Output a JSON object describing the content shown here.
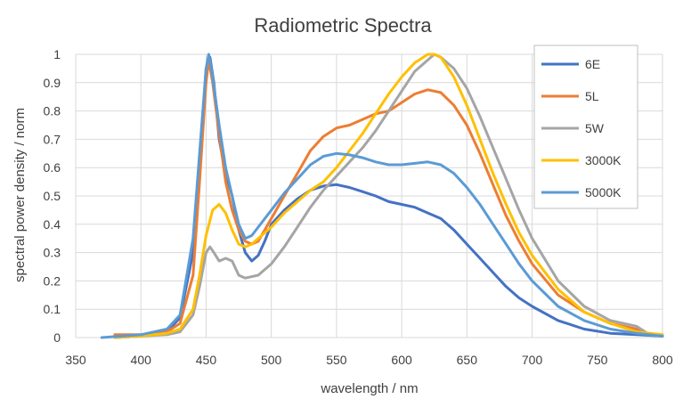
{
  "chart_data": {
    "type": "line",
    "title": "Radiometric Spectra",
    "xlabel": "wavelength / nm",
    "ylabel": "spectral power density / norm",
    "xlim": [
      350,
      800
    ],
    "ylim": [
      0,
      1
    ],
    "x_ticks": [
      350,
      400,
      450,
      500,
      550,
      600,
      650,
      700,
      750,
      800
    ],
    "y_ticks": [
      0,
      0.1,
      0.2,
      0.3,
      0.4,
      0.5,
      0.6,
      0.7,
      0.8,
      0.9,
      1
    ],
    "grid": true,
    "legend_position": "top-right",
    "series": [
      {
        "name": "6E",
        "color": "#4472c4",
        "points": [
          [
            380,
            0
          ],
          [
            400,
            0.005
          ],
          [
            420,
            0.02
          ],
          [
            430,
            0.07
          ],
          [
            440,
            0.3
          ],
          [
            445,
            0.6
          ],
          [
            450,
            0.95
          ],
          [
            453,
            0.99
          ],
          [
            456,
            0.9
          ],
          [
            460,
            0.7
          ],
          [
            465,
            0.58
          ],
          [
            470,
            0.5
          ],
          [
            475,
            0.38
          ],
          [
            480,
            0.3
          ],
          [
            485,
            0.27
          ],
          [
            490,
            0.29
          ],
          [
            495,
            0.34
          ],
          [
            500,
            0.4
          ],
          [
            510,
            0.45
          ],
          [
            520,
            0.49
          ],
          [
            530,
            0.52
          ],
          [
            540,
            0.535
          ],
          [
            550,
            0.54
          ],
          [
            560,
            0.53
          ],
          [
            570,
            0.515
          ],
          [
            580,
            0.5
          ],
          [
            590,
            0.48
          ],
          [
            600,
            0.47
          ],
          [
            610,
            0.46
          ],
          [
            620,
            0.44
          ],
          [
            630,
            0.42
          ],
          [
            640,
            0.38
          ],
          [
            650,
            0.33
          ],
          [
            660,
            0.28
          ],
          [
            670,
            0.23
          ],
          [
            680,
            0.18
          ],
          [
            690,
            0.14
          ],
          [
            700,
            0.11
          ],
          [
            720,
            0.06
          ],
          [
            740,
            0.03
          ],
          [
            760,
            0.015
          ],
          [
            780,
            0.01
          ],
          [
            800,
            0.005
          ]
        ]
      },
      {
        "name": "5L",
        "color": "#ed7d31",
        "points": [
          [
            380,
            0.01
          ],
          [
            400,
            0.01
          ],
          [
            420,
            0.02
          ],
          [
            430,
            0.05
          ],
          [
            440,
            0.22
          ],
          [
            445,
            0.55
          ],
          [
            450,
            0.9
          ],
          [
            452,
            0.98
          ],
          [
            455,
            0.9
          ],
          [
            460,
            0.72
          ],
          [
            465,
            0.55
          ],
          [
            470,
            0.45
          ],
          [
            475,
            0.38
          ],
          [
            480,
            0.34
          ],
          [
            485,
            0.33
          ],
          [
            490,
            0.34
          ],
          [
            495,
            0.38
          ],
          [
            500,
            0.42
          ],
          [
            510,
            0.5
          ],
          [
            520,
            0.58
          ],
          [
            530,
            0.66
          ],
          [
            540,
            0.71
          ],
          [
            550,
            0.74
          ],
          [
            560,
            0.75
          ],
          [
            570,
            0.77
          ],
          [
            580,
            0.79
          ],
          [
            590,
            0.8
          ],
          [
            600,
            0.83
          ],
          [
            610,
            0.86
          ],
          [
            620,
            0.875
          ],
          [
            630,
            0.865
          ],
          [
            640,
            0.82
          ],
          [
            650,
            0.75
          ],
          [
            660,
            0.65
          ],
          [
            670,
            0.54
          ],
          [
            680,
            0.43
          ],
          [
            690,
            0.34
          ],
          [
            700,
            0.26
          ],
          [
            720,
            0.15
          ],
          [
            740,
            0.09
          ],
          [
            760,
            0.05
          ],
          [
            780,
            0.03
          ],
          [
            790,
            0.01
          ],
          [
            800,
            0.005
          ]
        ]
      },
      {
        "name": "5W",
        "color": "#a5a5a5",
        "points": [
          [
            380,
            0
          ],
          [
            400,
            0.005
          ],
          [
            420,
            0.01
          ],
          [
            430,
            0.02
          ],
          [
            440,
            0.08
          ],
          [
            445,
            0.18
          ],
          [
            450,
            0.3
          ],
          [
            453,
            0.32
          ],
          [
            456,
            0.3
          ],
          [
            460,
            0.27
          ],
          [
            465,
            0.28
          ],
          [
            470,
            0.27
          ],
          [
            475,
            0.22
          ],
          [
            480,
            0.21
          ],
          [
            490,
            0.22
          ],
          [
            500,
            0.26
          ],
          [
            510,
            0.32
          ],
          [
            520,
            0.39
          ],
          [
            530,
            0.46
          ],
          [
            540,
            0.52
          ],
          [
            550,
            0.57
          ],
          [
            560,
            0.62
          ],
          [
            570,
            0.67
          ],
          [
            580,
            0.73
          ],
          [
            590,
            0.8
          ],
          [
            600,
            0.87
          ],
          [
            610,
            0.94
          ],
          [
            620,
            0.98
          ],
          [
            625,
            1
          ],
          [
            630,
            0.99
          ],
          [
            640,
            0.95
          ],
          [
            650,
            0.88
          ],
          [
            660,
            0.78
          ],
          [
            670,
            0.67
          ],
          [
            680,
            0.56
          ],
          [
            690,
            0.45
          ],
          [
            700,
            0.35
          ],
          [
            720,
            0.2
          ],
          [
            740,
            0.11
          ],
          [
            760,
            0.06
          ],
          [
            780,
            0.04
          ],
          [
            790,
            0.01
          ],
          [
            800,
            0.005
          ]
        ]
      },
      {
        "name": "3000K",
        "color": "#ffc000",
        "points": [
          [
            380,
            0
          ],
          [
            400,
            0.005
          ],
          [
            420,
            0.015
          ],
          [
            430,
            0.03
          ],
          [
            440,
            0.1
          ],
          [
            445,
            0.22
          ],
          [
            450,
            0.36
          ],
          [
            455,
            0.45
          ],
          [
            460,
            0.47
          ],
          [
            465,
            0.44
          ],
          [
            470,
            0.38
          ],
          [
            475,
            0.33
          ],
          [
            480,
            0.32
          ],
          [
            485,
            0.33
          ],
          [
            490,
            0.35
          ],
          [
            500,
            0.39
          ],
          [
            510,
            0.44
          ],
          [
            520,
            0.48
          ],
          [
            530,
            0.52
          ],
          [
            540,
            0.55
          ],
          [
            550,
            0.6
          ],
          [
            560,
            0.66
          ],
          [
            570,
            0.72
          ],
          [
            580,
            0.79
          ],
          [
            590,
            0.86
          ],
          [
            600,
            0.92
          ],
          [
            610,
            0.97
          ],
          [
            620,
            1
          ],
          [
            625,
            1
          ],
          [
            630,
            0.99
          ],
          [
            640,
            0.92
          ],
          [
            650,
            0.82
          ],
          [
            660,
            0.7
          ],
          [
            670,
            0.58
          ],
          [
            680,
            0.47
          ],
          [
            690,
            0.37
          ],
          [
            700,
            0.29
          ],
          [
            720,
            0.17
          ],
          [
            740,
            0.09
          ],
          [
            760,
            0.05
          ],
          [
            780,
            0.02
          ],
          [
            800,
            0.01
          ]
        ]
      },
      {
        "name": "5000K",
        "color": "#5b9bd5",
        "points": [
          [
            370,
            0
          ],
          [
            400,
            0.01
          ],
          [
            420,
            0.03
          ],
          [
            430,
            0.08
          ],
          [
            440,
            0.35
          ],
          [
            445,
            0.65
          ],
          [
            450,
            0.95
          ],
          [
            452,
            1
          ],
          [
            455,
            0.92
          ],
          [
            460,
            0.75
          ],
          [
            465,
            0.6
          ],
          [
            470,
            0.5
          ],
          [
            475,
            0.4
          ],
          [
            480,
            0.35
          ],
          [
            485,
            0.36
          ],
          [
            490,
            0.39
          ],
          [
            500,
            0.45
          ],
          [
            510,
            0.51
          ],
          [
            520,
            0.56
          ],
          [
            530,
            0.61
          ],
          [
            540,
            0.64
          ],
          [
            550,
            0.65
          ],
          [
            560,
            0.645
          ],
          [
            570,
            0.635
          ],
          [
            580,
            0.62
          ],
          [
            590,
            0.61
          ],
          [
            600,
            0.61
          ],
          [
            610,
            0.615
          ],
          [
            620,
            0.62
          ],
          [
            630,
            0.61
          ],
          [
            640,
            0.58
          ],
          [
            650,
            0.53
          ],
          [
            660,
            0.47
          ],
          [
            670,
            0.4
          ],
          [
            680,
            0.33
          ],
          [
            690,
            0.26
          ],
          [
            700,
            0.2
          ],
          [
            720,
            0.11
          ],
          [
            740,
            0.06
          ],
          [
            760,
            0.03
          ],
          [
            780,
            0.015
          ],
          [
            800,
            0.005
          ]
        ]
      }
    ]
  }
}
